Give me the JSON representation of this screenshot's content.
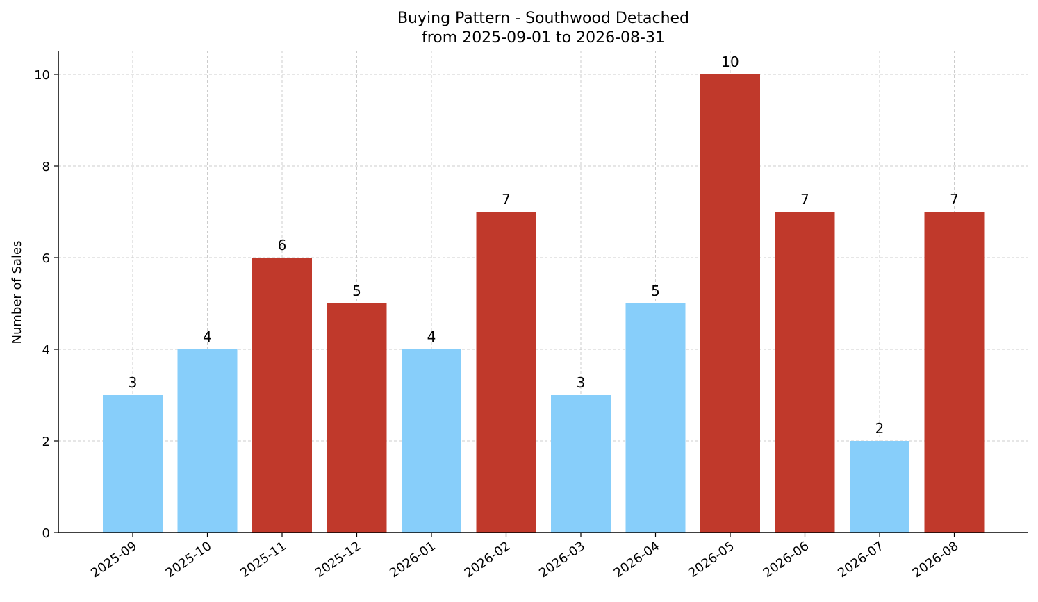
{
  "chart_data": {
    "type": "bar",
    "title_line1": "Buying Pattern - Southwood Detached",
    "title_line2": "from 2025-09-01 to 2026-08-31",
    "xlabel": "",
    "ylabel": "Number of Sales",
    "categories": [
      "2025-09",
      "2025-10",
      "2025-11",
      "2025-12",
      "2026-01",
      "2026-02",
      "2026-03",
      "2026-04",
      "2026-05",
      "2026-06",
      "2026-07",
      "2026-08"
    ],
    "values": [
      3,
      4,
      6,
      5,
      4,
      7,
      3,
      5,
      10,
      7,
      2,
      7
    ],
    "value_labels": [
      "3",
      "4",
      "6",
      "5",
      "4",
      "7",
      "3",
      "5",
      "10",
      "7",
      "2",
      "7"
    ],
    "bar_colors": [
      "#87CEFA",
      "#87CEFA",
      "#C0392B",
      "#C0392B",
      "#87CEFA",
      "#C0392B",
      "#87CEFA",
      "#87CEFA",
      "#C0392B",
      "#C0392B",
      "#87CEFA",
      "#C0392B"
    ],
    "ylim": [
      0,
      10.5
    ],
    "yticks": [
      0,
      2,
      4,
      6,
      8,
      10
    ],
    "ytick_labels": [
      "0",
      "2",
      "4",
      "6",
      "8",
      "10"
    ],
    "grid": true,
    "legend": "none"
  }
}
